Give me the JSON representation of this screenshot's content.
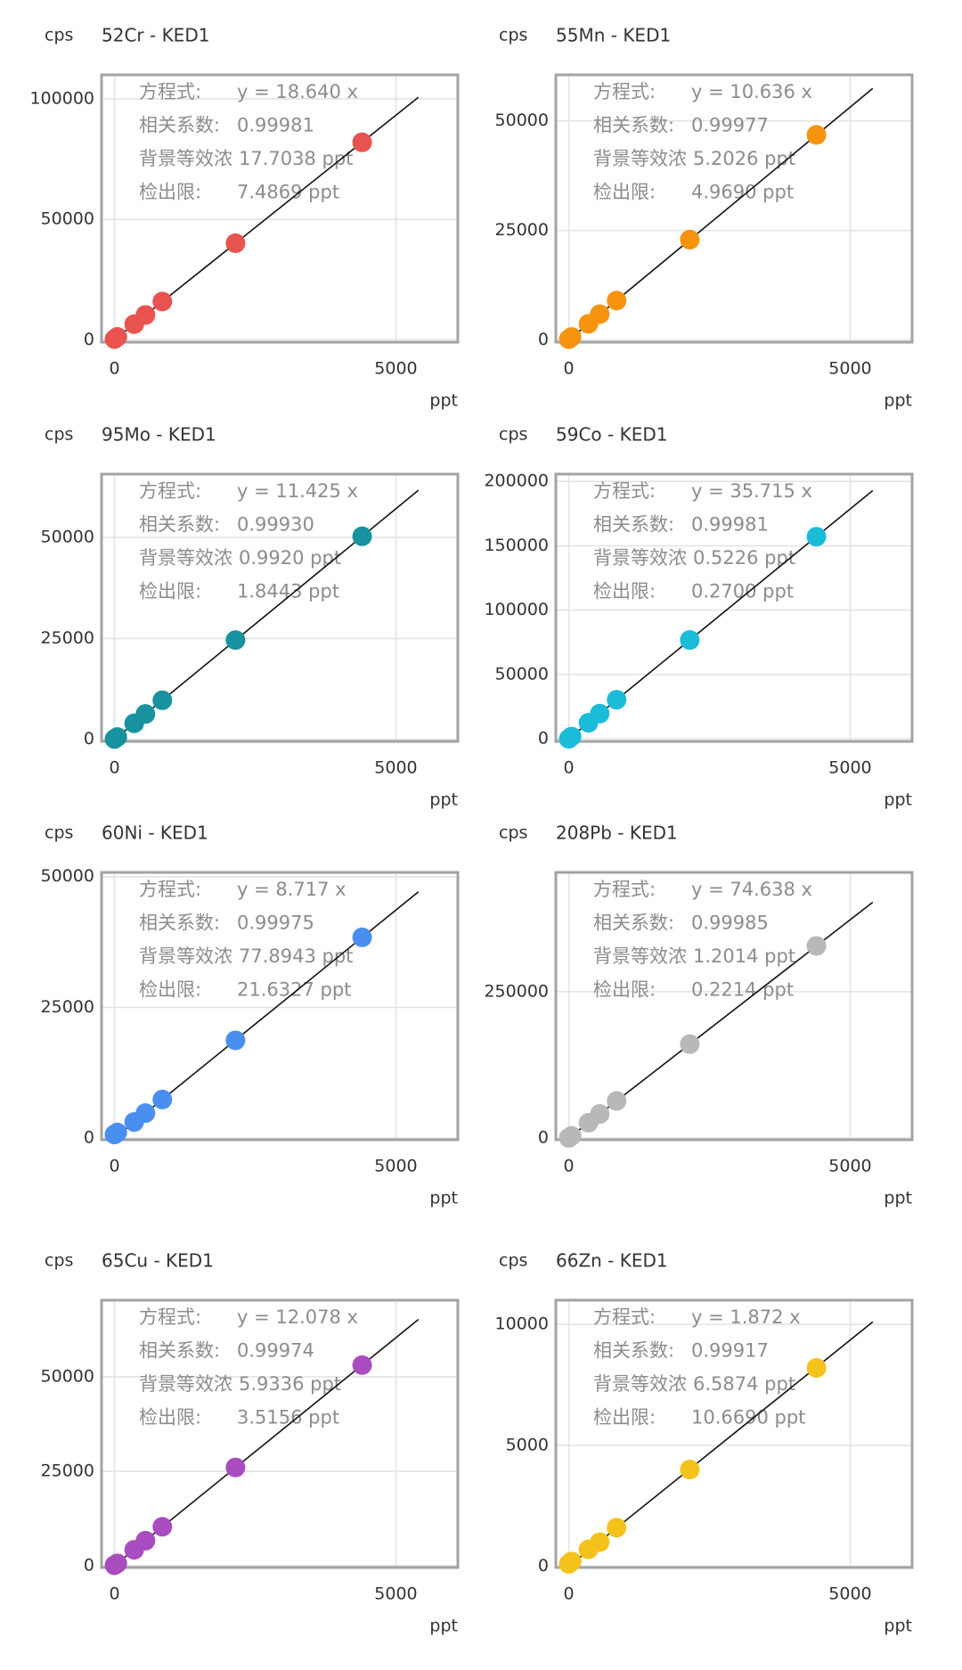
{
  "chart_data": [
    {
      "type": "scatter",
      "title": "52Cr - KED1",
      "ylabel": "cps",
      "xlabel": "ppt",
      "color": "#e8534f",
      "grid": true,
      "x": [
        0,
        50,
        350,
        550,
        850,
        2150,
        4400
      ],
      "values": [
        300,
        1200,
        6500,
        10300,
        15900,
        40100,
        82000
      ],
      "fit_line": {
        "x": [
          0,
          5400
        ],
        "values": [
          0,
          100700
        ]
      },
      "xlim": [
        -230,
        6100
      ],
      "xticks": [
        0,
        5000
      ],
      "ylim": [
        -1000,
        110000
      ],
      "yticks": [
        0,
        50000,
        100000
      ],
      "annotations": [
        {
          "label": "方程式:",
          "value": "y = 18.640 x"
        },
        {
          "label": "相关系数:",
          "value": "0.99981"
        },
        {
          "label": "背景等效浓",
          "value": "17.7038 ppt"
        },
        {
          "label": "检出限:",
          "value": "7.4869 ppt"
        }
      ]
    },
    {
      "type": "scatter",
      "title": "55Mn - KED1",
      "ylabel": "cps",
      "xlabel": "ppt",
      "color": "#f5930f",
      "grid": true,
      "x": [
        0,
        50,
        350,
        550,
        850,
        2150,
        4400
      ],
      "values": [
        200,
        700,
        3700,
        5900,
        9000,
        22900,
        46800
      ],
      "fit_line": {
        "x": [
          0,
          5400
        ],
        "values": [
          0,
          57400
        ]
      },
      "xlim": [
        -230,
        6100
      ],
      "xticks": [
        0,
        5000
      ],
      "ylim": [
        -500,
        60500
      ],
      "yticks": [
        0,
        25000,
        50000
      ],
      "annotations": [
        {
          "label": "方程式:",
          "value": "y = 10.636 x"
        },
        {
          "label": "相关系数:",
          "value": "0.99977"
        },
        {
          "label": "背景等效浓",
          "value": "5.2026 ppt"
        },
        {
          "label": "检出限:",
          "value": "4.9690 ppt"
        }
      ]
    },
    {
      "type": "scatter",
      "title": "95Mo - KED1",
      "ylabel": "cps",
      "xlabel": "ppt",
      "color": "#17929e",
      "grid": true,
      "x": [
        0,
        50,
        350,
        550,
        850,
        2150,
        4400
      ],
      "values": [
        100,
        600,
        4000,
        6300,
        9700,
        24600,
        50300
      ],
      "fit_line": {
        "x": [
          0,
          5400
        ],
        "values": [
          0,
          61700
        ]
      },
      "xlim": [
        -230,
        6100
      ],
      "xticks": [
        0,
        5000
      ],
      "ylim": [
        -500,
        65700
      ],
      "yticks": [
        0,
        25000,
        50000
      ],
      "annotations": [
        {
          "label": "方程式:",
          "value": "y = 11.425 x"
        },
        {
          "label": "相关系数:",
          "value": "0.99930"
        },
        {
          "label": "背景等效浓",
          "value": "0.9920 ppt"
        },
        {
          "label": "检出限:",
          "value": "1.8443 ppt"
        }
      ]
    },
    {
      "type": "scatter",
      "title": "59Co - KED1",
      "ylabel": "cps",
      "xlabel": "ppt",
      "color": "#1bbcd8",
      "grid": true,
      "x": [
        0,
        50,
        350,
        550,
        850,
        2150,
        4400
      ],
      "values": [
        50,
        1800,
        12500,
        19600,
        30400,
        76800,
        157100
      ],
      "fit_line": {
        "x": [
          0,
          5400
        ],
        "values": [
          0,
          192900
        ]
      },
      "xlim": [
        -230,
        6100
      ],
      "xticks": [
        0,
        5000
      ],
      "ylim": [
        -2000,
        205700
      ],
      "yticks": [
        0,
        50000,
        100000,
        150000,
        200000
      ],
      "annotations": [
        {
          "label": "方程式:",
          "value": "y = 35.715 x"
        },
        {
          "label": "相关系数:",
          "value": "0.99981"
        },
        {
          "label": "背景等效浓",
          "value": "0.5226 ppt"
        },
        {
          "label": "检出限:",
          "value": "0.2700 ppt"
        }
      ]
    },
    {
      "type": "scatter",
      "title": "60Ni - KED1",
      "ylabel": "cps",
      "xlabel": "ppt",
      "color": "#4a8ef0",
      "grid": true,
      "x": [
        0,
        50,
        350,
        550,
        850,
        2150,
        4400
      ],
      "values": [
        700,
        1100,
        3100,
        4800,
        7400,
        18700,
        38400
      ],
      "fit_line": {
        "x": [
          0,
          5400
        ],
        "values": [
          0,
          47100
        ]
      },
      "xlim": [
        -230,
        6100
      ],
      "xticks": [
        0,
        5000
      ],
      "ylim": [
        -300,
        50800
      ],
      "yticks": [
        0,
        25000,
        50000
      ],
      "annotations": [
        {
          "label": "方程式:",
          "value": "y = 8.717 x"
        },
        {
          "label": "相关系数:",
          "value": "0.99975"
        },
        {
          "label": "背景等效浓",
          "value": "77.8943 ppt"
        },
        {
          "label": "检出限:",
          "value": "21.6327 ppt"
        }
      ]
    },
    {
      "type": "scatter",
      "title": "208Pb - KED1",
      "ylabel": "cps",
      "xlabel": "ppt",
      "color": "#b8b8b8",
      "grid": true,
      "x": [
        0,
        50,
        350,
        550,
        850,
        2150,
        4400
      ],
      "values": [
        100,
        3700,
        26100,
        41100,
        63400,
        160500,
        328400
      ],
      "fit_line": {
        "x": [
          0,
          5400
        ],
        "values": [
          0,
          403000
        ]
      },
      "xlim": [
        -230,
        6100
      ],
      "xticks": [
        0,
        5000
      ],
      "ylim": [
        -3000,
        454000
      ],
      "yticks": [
        0,
        250000
      ],
      "annotations": [
        {
          "label": "方程式:",
          "value": "y = 74.638 x"
        },
        {
          "label": "相关系数:",
          "value": "0.99985"
        },
        {
          "label": "背景等效浓",
          "value": "1.2014 ppt"
        },
        {
          "label": "检出限:",
          "value": "0.2214 ppt"
        }
      ]
    },
    {
      "type": "scatter",
      "title": "65Cu - KED1",
      "ylabel": "cps",
      "xlabel": "ppt",
      "color": "#a94cc0",
      "grid": true,
      "x": [
        0,
        50,
        350,
        550,
        850,
        2150,
        4400
      ],
      "values": [
        100,
        600,
        4200,
        6600,
        10300,
        26000,
        53100
      ],
      "fit_line": {
        "x": [
          0,
          5400
        ],
        "values": [
          0,
          65200
        ]
      },
      "xlim": [
        -230,
        6100
      ],
      "xticks": [
        0,
        5000
      ],
      "ylim": [
        -500,
        70300
      ],
      "yticks": [
        0,
        25000,
        50000
      ],
      "annotations": [
        {
          "label": "方程式:",
          "value": "y = 12.078 x"
        },
        {
          "label": "相关系数:",
          "value": "0.99974"
        },
        {
          "label": "背景等效浓",
          "value": "5.9336 ppt"
        },
        {
          "label": "检出限:",
          "value": "3.5156 ppt"
        }
      ]
    },
    {
      "type": "scatter",
      "title": "66Zn - KED1",
      "ylabel": "cps",
      "xlabel": "ppt",
      "color": "#f4c21a",
      "grid": true,
      "x": [
        0,
        50,
        350,
        550,
        850,
        2150,
        4400
      ],
      "values": [
        100,
        200,
        700,
        1000,
        1600,
        4000,
        8200
      ],
      "fit_line": {
        "x": [
          0,
          5400
        ],
        "values": [
          0,
          10100
        ]
      },
      "xlim": [
        -230,
        6100
      ],
      "xticks": [
        0,
        5000
      ],
      "ylim": [
        -50,
        11000
      ],
      "yticks": [
        0,
        5000,
        10000
      ],
      "annotations": [
        {
          "label": "方程式:",
          "value": "y = 1.872 x"
        },
        {
          "label": "相关系数:",
          "value": "0.99917"
        },
        {
          "label": "背景等效浓",
          "value": "6.5874 ppt"
        },
        {
          "label": "检出限:",
          "value": "10.6690 ppt"
        }
      ]
    }
  ]
}
